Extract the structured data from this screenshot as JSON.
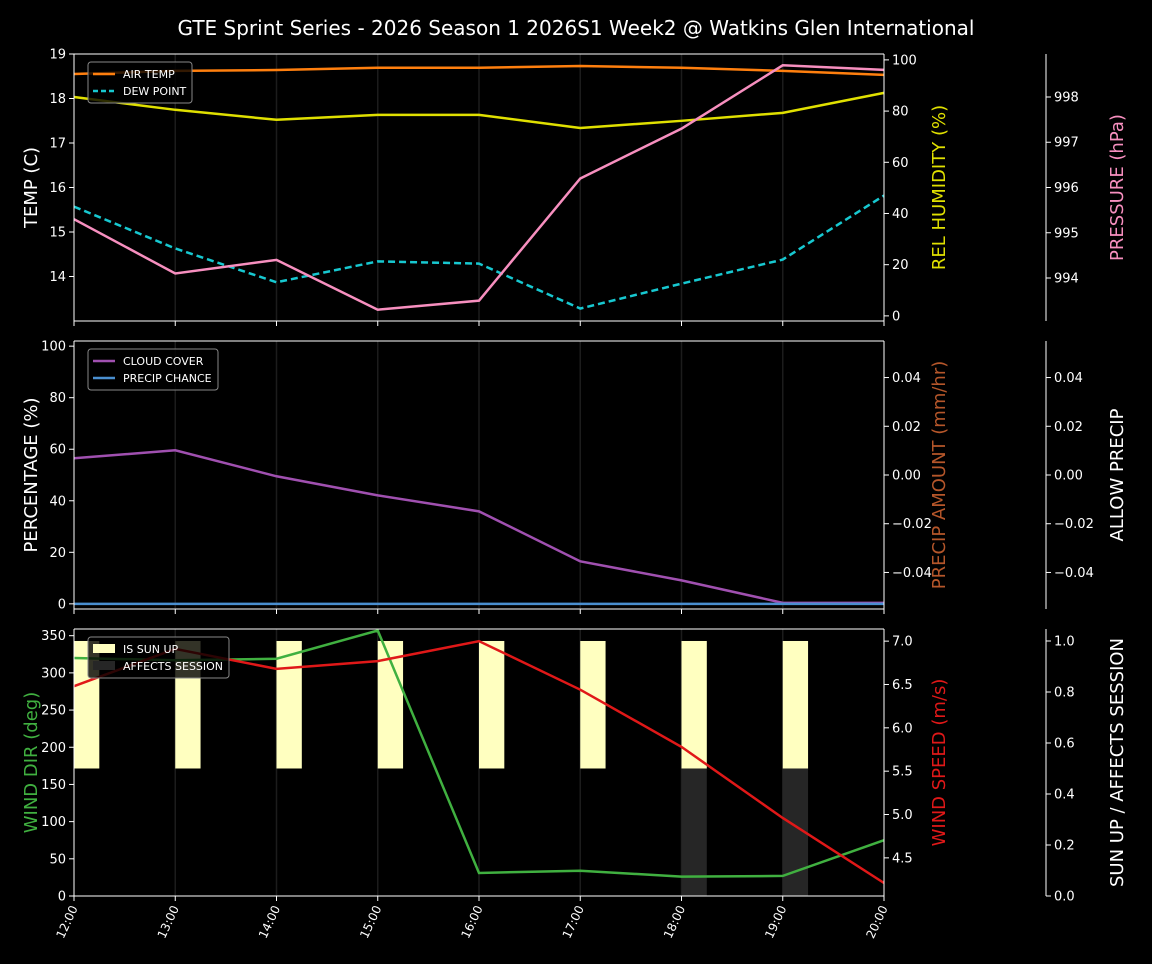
{
  "title": "GTE Sprint Series - 2026 Season 1 2026S1 Week2 @ Watkins Glen International",
  "chart_data": [
    {
      "type": "line",
      "x": [
        "12:00",
        "13:00",
        "14:00",
        "15:00",
        "16:00",
        "17:00",
        "18:00",
        "19:00",
        "20:00"
      ],
      "legend": "top-left",
      "axes": [
        {
          "side": "left",
          "label": "TEMP (C)",
          "color": "#ffffff",
          "ylim": [
            13.0,
            19.0
          ],
          "ticks": [
            14,
            15,
            16,
            17,
            18,
            19
          ]
        },
        {
          "side": "right",
          "label": "REL HUMIDITY (%)",
          "color": "#e0e000",
          "ylim": [
            -2,
            102.3
          ],
          "ticks": [
            0,
            20,
            40,
            60,
            80,
            100
          ]
        },
        {
          "side": "right2",
          "label": "PRESSURE (hPa)",
          "color": "#f78fbf",
          "ylim": [
            993.05,
            998.95
          ],
          "ticks": [
            994,
            995,
            996,
            997,
            998
          ]
        }
      ],
      "series": [
        {
          "name": "AIR TEMP",
          "axis": 0,
          "color": "#ff7f0e",
          "dash": false,
          "legend": true,
          "values": [
            18.55,
            18.62,
            18.64,
            18.69,
            18.69,
            18.73,
            18.69,
            18.62,
            18.53
          ]
        },
        {
          "name": "DEW POINT",
          "axis": 0,
          "color": "#17c8d0",
          "dash": true,
          "legend": true,
          "values": [
            15.57,
            14.63,
            13.87,
            14.34,
            14.29,
            13.28,
            13.84,
            14.38,
            15.82
          ]
        },
        {
          "axis": 1,
          "color": "#e0e000",
          "dash": false,
          "legend": false,
          "values": [
            85.5,
            80.5,
            76.6,
            78.5,
            78.5,
            73.4,
            76.2,
            79.3,
            87.1
          ]
        },
        {
          "axis": 2,
          "color": "#f78fbf",
          "dash": false,
          "legend": false,
          "values": [
            995.3,
            994.1,
            994.4,
            993.3,
            993.5,
            996.2,
            997.3,
            998.7,
            998.6
          ]
        }
      ]
    },
    {
      "type": "line",
      "x": [
        "12:00",
        "13:00",
        "14:00",
        "15:00",
        "16:00",
        "17:00",
        "18:00",
        "19:00",
        "20:00"
      ],
      "legend": "top-left",
      "axes": [
        {
          "side": "left",
          "label": "PERCENTAGE (%)",
          "color": "#ffffff",
          "ylim": [
            -2,
            102
          ],
          "ticks": [
            0,
            20,
            40,
            60,
            80,
            100
          ]
        },
        {
          "side": "right",
          "label": "PRECIP AMOUNT (mm/hr)",
          "color": "#b5562a",
          "ylim": [
            -0.055,
            0.055
          ],
          "ticks": [
            -0.04,
            -0.02,
            0.0,
            0.02,
            0.04
          ],
          "tick_labels": [
            "−0.04",
            "−0.02",
            "0.00",
            "0.02",
            "0.04"
          ]
        },
        {
          "side": "right2",
          "label": "ALLOW PRECIP",
          "color": "#ffffff",
          "ylim": [
            -0.055,
            0.055
          ],
          "ticks": [
            -0.04,
            -0.02,
            0.0,
            0.02,
            0.04
          ],
          "tick_labels": [
            "−0.04",
            "−0.02",
            "0.00",
            "0.02",
            "0.04"
          ]
        }
      ],
      "series": [
        {
          "name": "CLOUD COVER",
          "axis": 0,
          "color": "#a050b0",
          "dash": false,
          "legend": true,
          "values": [
            56.5,
            59.6,
            49.5,
            42.1,
            35.9,
            16.5,
            9.1,
            0.4,
            0.4
          ]
        },
        {
          "name": "PRECIP CHANCE",
          "axis": 0,
          "color": "#4a8fd0",
          "dash": false,
          "legend": true,
          "values": [
            0,
            0,
            0,
            0,
            0,
            0,
            0,
            0,
            0
          ]
        }
      ]
    },
    {
      "type": "line",
      "x": [
        "12:00",
        "13:00",
        "14:00",
        "15:00",
        "16:00",
        "17:00",
        "18:00",
        "19:00",
        "20:00"
      ],
      "legend": "top-left",
      "axes": [
        {
          "side": "left",
          "label": "WIND DIR (deg)",
          "color": "#40b040",
          "ylim": [
            0,
            359
          ],
          "ticks": [
            0,
            50,
            100,
            150,
            200,
            250,
            300,
            350
          ]
        },
        {
          "side": "right",
          "label": "WIND SPEED (m/s)",
          "color": "#e01818",
          "ylim": [
            4.06,
            7.14
          ],
          "ticks": [
            4.5,
            5.0,
            5.5,
            6.0,
            6.5,
            7.0
          ],
          "tick_labels": [
            "4.5",
            "5.0",
            "5.5",
            "6.0",
            "6.5",
            "7.0"
          ]
        },
        {
          "side": "right2",
          "label": "SUN UP / AFFECTS SESSION",
          "color": "#ffffff",
          "ylim": [
            0,
            1.047
          ],
          "ticks": [
            0,
            0.2,
            0.4,
            0.6,
            0.8,
            1.0
          ],
          "tick_labels": [
            "0.0",
            "0.2",
            "0.4",
            "0.6",
            "0.8",
            "1.0"
          ]
        }
      ],
      "bars": [
        {
          "name": "IS SUN UP",
          "color": "#ffffc0",
          "base": 0.5,
          "values": [
            1,
            1,
            1,
            1,
            1,
            1,
            1,
            1,
            0
          ]
        },
        {
          "name": "AFFECTS SESSION",
          "color": "#262626",
          "base": 0,
          "values": [
            0,
            0,
            0,
            0,
            0,
            0,
            1,
            1,
            0
          ]
        }
      ],
      "series": [
        {
          "axis": 0,
          "color": "#40b040",
          "dash": false,
          "legend": false,
          "values": [
            320,
            317,
            319,
            357,
            31,
            34,
            26,
            27,
            75
          ]
        },
        {
          "axis": 1,
          "color": "#e01818",
          "dash": false,
          "legend": false,
          "values": [
            6.48,
            6.91,
            6.68,
            6.77,
            7.0,
            6.44,
            5.78,
            4.96,
            4.21
          ]
        }
      ]
    }
  ]
}
